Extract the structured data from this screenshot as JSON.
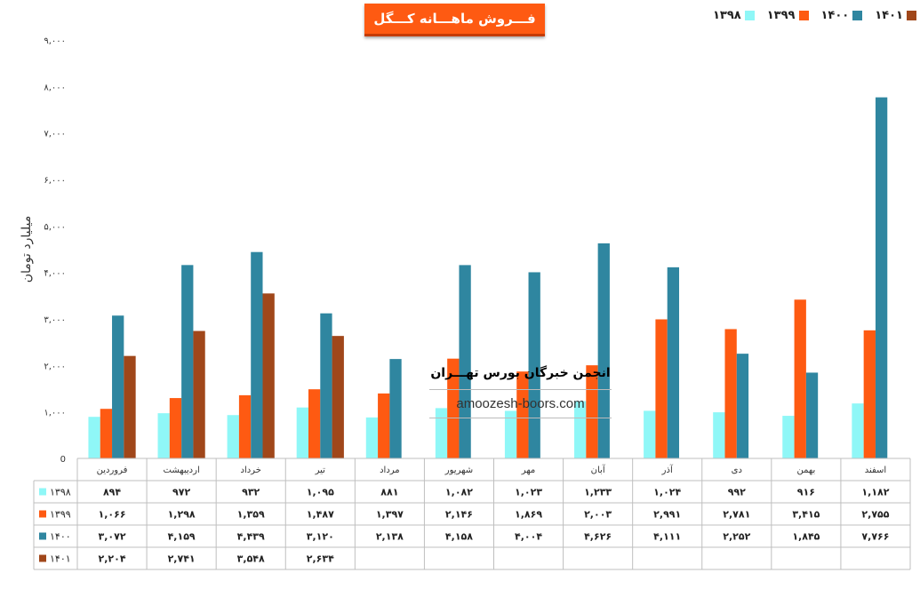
{
  "title": "فـــروش ماهـــانه کـــگل",
  "colors": {
    "title_bg": "#fe5a12",
    "s1398": "#8ff7f7",
    "s1399": "#fe5a12",
    "s1400": "#2f86a0",
    "s1401": "#a0471a"
  },
  "chart_data": {
    "type": "bar",
    "title": "فـــروش ماهـــانه کـــگل",
    "ylabel": "میلیارد تومان",
    "xlabel": "",
    "ylim": [
      0,
      9000
    ],
    "y_ticks": [
      "0",
      "۱,۰۰۰",
      "۲,۰۰۰",
      "۳,۰۰۰",
      "۴,۰۰۰",
      "۵,۰۰۰",
      "۶,۰۰۰",
      "۷,۰۰۰",
      "۸,۰۰۰",
      "۹,۰۰۰"
    ],
    "legend_position": "top-right",
    "categories": [
      "فروردین",
      "اردیبهشت",
      "خرداد",
      "تیر",
      "مرداد",
      "شهریور",
      "مهر",
      "آبان",
      "آذر",
      "دی",
      "بهمن",
      "اسفند"
    ],
    "series": [
      {
        "name": "۱۳۹۸",
        "color": "#8ff7f7",
        "values": [
          894,
          972,
          932,
          1095,
          881,
          1082,
          1023,
          1233,
          1024,
          992,
          916,
          1182
        ],
        "labels": [
          "۸۹۴",
          "۹۷۲",
          "۹۳۲",
          "۱,۰۹۵",
          "۸۸۱",
          "۱,۰۸۲",
          "۱,۰۲۳",
          "۱,۲۳۳",
          "۱,۰۲۴",
          "۹۹۲",
          "۹۱۶",
          "۱,۱۸۲"
        ]
      },
      {
        "name": "۱۳۹۹",
        "color": "#fe5a12",
        "values": [
          1066,
          1298,
          1359,
          1487,
          1397,
          2146,
          1869,
          2003,
          2991,
          2781,
          3415,
          2755
        ],
        "labels": [
          "۱,۰۶۶",
          "۱,۲۹۸",
          "۱,۳۵۹",
          "۱,۴۸۷",
          "۱,۳۹۷",
          "۲,۱۴۶",
          "۱,۸۶۹",
          "۲,۰۰۳",
          "۲,۹۹۱",
          "۲,۷۸۱",
          "۳,۴۱۵",
          "۲,۷۵۵"
        ]
      },
      {
        "name": "۱۴۰۰",
        "color": "#2f86a0",
        "values": [
          3072,
          4159,
          4439,
          3120,
          2138,
          4158,
          4004,
          4626,
          4111,
          2252,
          1845,
          7766
        ],
        "labels": [
          "۳,۰۷۲",
          "۴,۱۵۹",
          "۴,۴۳۹",
          "۳,۱۲۰",
          "۲,۱۳۸",
          "۴,۱۵۸",
          "۴,۰۰۴",
          "۴,۶۲۶",
          "۴,۱۱۱",
          "۲,۲۵۲",
          "۱,۸۴۵",
          "۷,۷۶۶"
        ]
      },
      {
        "name": "۱۴۰۱",
        "color": "#a0471a",
        "values": [
          2204,
          2741,
          3548,
          2634,
          null,
          null,
          null,
          null,
          null,
          null,
          null,
          null
        ],
        "labels": [
          "۲,۲۰۴",
          "۲,۷۴۱",
          "۳,۵۴۸",
          "۲,۶۳۴",
          "",
          "",
          "",
          "",
          "",
          "",
          "",
          ""
        ]
      }
    ]
  },
  "watermark": {
    "title": "انجمن خبرگان بورس تهـــران",
    "url": "amoozesh-boors.com"
  }
}
